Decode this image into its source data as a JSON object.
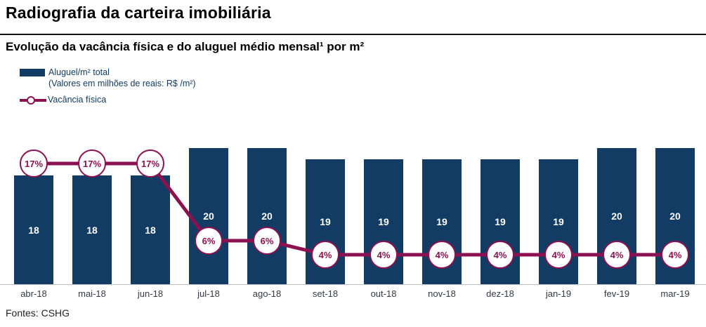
{
  "header": {
    "title": "Radiografia da carteira imobiliária",
    "subtitle": "Evolução da vacância física e do aluguel médio mensal¹ por m²"
  },
  "legend": {
    "bars_label": "Aluguel/m² total",
    "bars_sublabel": "(Valores em milhões de reais: R$ /m²)",
    "line_label": "Vacância física"
  },
  "footer": {
    "source": "Fontes: CSHG"
  },
  "colors": {
    "bar": "#123c63",
    "line": "#8c1150",
    "marker_fill": "#ffffff",
    "axis": "#bfbfbf",
    "bar_label": "#ffffff"
  },
  "chart_data": {
    "type": "bar",
    "title": "Evolução da vacância física e do aluguel médio mensal¹ por m²",
    "categories": [
      "abr-18",
      "mai-18",
      "jun-18",
      "jul-18",
      "ago-18",
      "set-18",
      "out-18",
      "nov-18",
      "dez-18",
      "jan-19",
      "fev-19",
      "mar-19"
    ],
    "series": [
      {
        "name": "Aluguel/m² total",
        "type": "bar",
        "unit": "R$/m²",
        "values": [
          18,
          18,
          18,
          20,
          20,
          19,
          19,
          19,
          19,
          19,
          20,
          20
        ]
      },
      {
        "name": "Vacância física",
        "type": "line",
        "unit": "%",
        "values": [
          17,
          17,
          17,
          6,
          6,
          4,
          4,
          4,
          4,
          4,
          4,
          4
        ],
        "labels": [
          "17%",
          "17%",
          "17%",
          "6%",
          "6%",
          "4%",
          "4%",
          "4%",
          "4%",
          "4%",
          "4%",
          "4%"
        ]
      }
    ],
    "xlabel": "",
    "ylabel": "",
    "bar_value_labels": true,
    "line_axis_range": [
      0,
      20
    ],
    "grid": false,
    "legend_position": "top-left"
  }
}
